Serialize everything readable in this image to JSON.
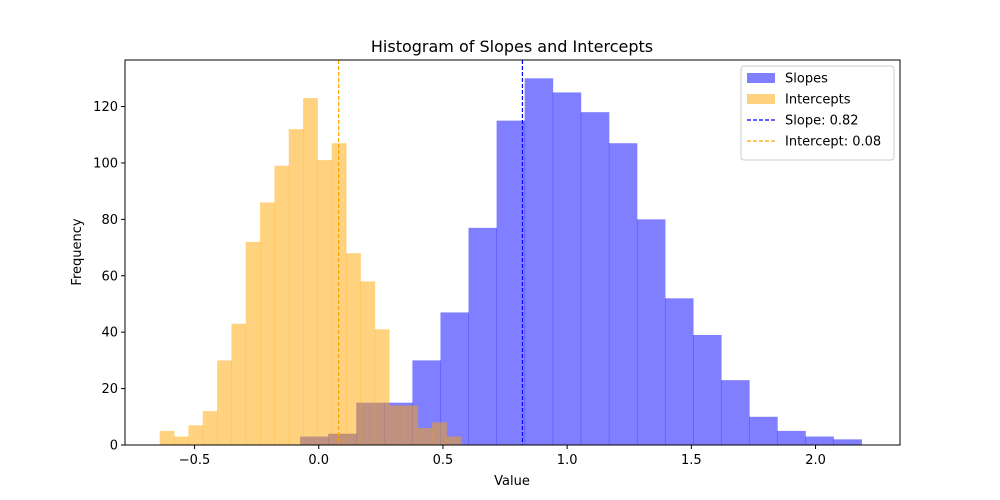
{
  "chart_data": {
    "type": "bar",
    "title": "Histogram of Slopes and Intercepts",
    "xlabel": "Value",
    "ylabel": "Frequency",
    "xlim": [
      -0.78,
      2.34
    ],
    "ylim": [
      0,
      136.5
    ],
    "xticks": [
      -0.5,
      0.0,
      0.5,
      1.0,
      1.5,
      2.0
    ],
    "xtick_labels": [
      "−0.5",
      "0.0",
      "0.5",
      "1.0",
      "1.5",
      "2.0"
    ],
    "yticks": [
      0,
      20,
      40,
      60,
      80,
      100,
      120
    ],
    "ytick_labels": [
      "0",
      "20",
      "40",
      "60",
      "80",
      "100",
      "120"
    ],
    "grid": false,
    "legend_position": "top-right",
    "series": [
      {
        "name": "Slopes",
        "kind": "histogram",
        "color": "#0000ff",
        "opacity": 0.5,
        "bin_start": -0.075,
        "bin_width": 0.113,
        "counts": [
          3,
          4,
          15,
          15,
          30,
          47,
          77,
          115,
          130,
          125,
          118,
          107,
          80,
          52,
          39,
          23,
          10,
          5,
          3,
          2
        ]
      },
      {
        "name": "Intercepts",
        "kind": "histogram",
        "color": "#ffa500",
        "opacity": 0.5,
        "bin_start": -0.64,
        "bin_width": 0.0577,
        "counts": [
          5,
          3,
          7,
          12,
          30,
          43,
          72,
          86,
          99,
          112,
          123,
          101,
          107,
          68,
          58,
          41,
          14,
          14,
          6,
          8,
          3
        ]
      },
      {
        "name": "Slope: 0.82",
        "kind": "vline",
        "color": "#0000ff",
        "x": 0.82
      },
      {
        "name": "Intercept: 0.08",
        "kind": "vline",
        "color": "#ffa500",
        "x": 0.08
      }
    ]
  }
}
